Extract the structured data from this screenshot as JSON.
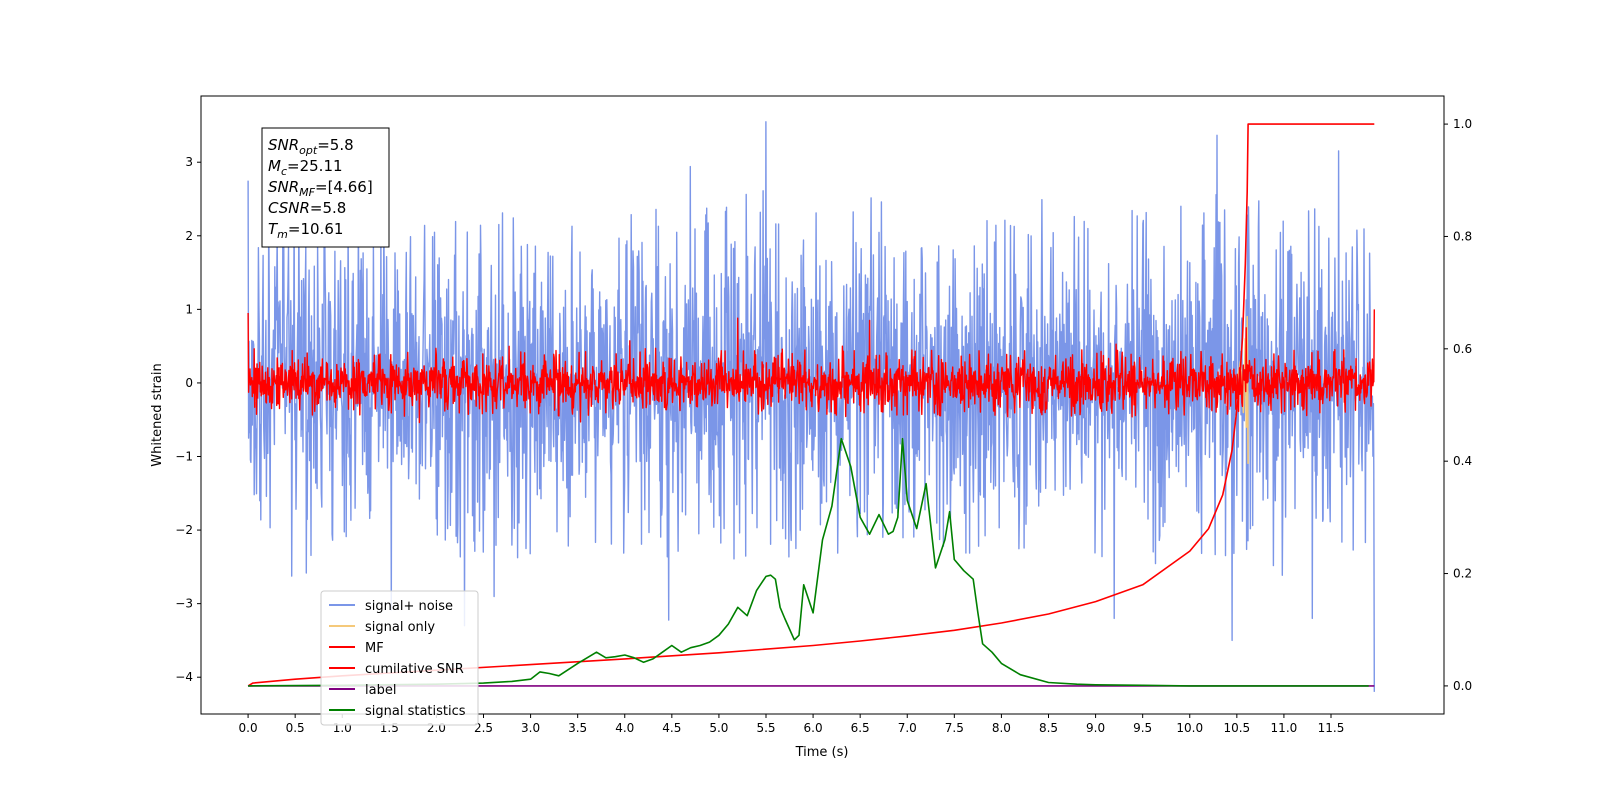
{
  "chart_data": {
    "type": "line",
    "xlabel": "Time (s)",
    "ylabel": "Whitened strain",
    "xlim": [
      -0.5,
      12.7
    ],
    "ylim": [
      -4.5,
      3.9
    ],
    "y2lim": [
      -0.05,
      1.05
    ],
    "x_ticks": [
      0.0,
      0.5,
      1.0,
      1.5,
      2.0,
      2.5,
      3.0,
      3.5,
      4.0,
      4.5,
      5.0,
      5.5,
      6.0,
      6.5,
      7.0,
      7.5,
      8.0,
      8.5,
      9.0,
      9.5,
      10.0,
      10.5,
      11.0,
      11.5
    ],
    "x_tick_labels": [
      "0.0",
      "0.5",
      "1.0",
      "1.5",
      "2.0",
      "2.5",
      "3.0",
      "3.5",
      "4.0",
      "4.5",
      "5.0",
      "5.5",
      "6.0",
      "6.5",
      "7.0",
      "7.5",
      "8.0",
      "8.5",
      "9.0",
      "9.5",
      "10.0",
      "10.5",
      "11.0",
      "11.5"
    ],
    "y_ticks": [
      -4,
      -3,
      -2,
      -1,
      0,
      1,
      2,
      3
    ],
    "y_tick_labels": [
      "−4",
      "−3",
      "−2",
      "−1",
      "0",
      "1",
      "2",
      "3"
    ],
    "y2_ticks": [
      0.0,
      0.2,
      0.4,
      0.6,
      0.8,
      1.0
    ],
    "y2_tick_labels": [
      "0.0",
      "0.2",
      "0.4",
      "0.6",
      "0.8",
      "1.0"
    ],
    "grid": false,
    "legend_position": "lower-left",
    "infobox": {
      "lines": [
        {
          "sym": "SNR",
          "sub": "opt",
          "rest": "=5.8"
        },
        {
          "sym": "M",
          "sub": "c",
          "rest": "=25.11"
        },
        {
          "sym": "SNR",
          "sub": "MF",
          "rest": "=[4.66]"
        },
        {
          "sym": "CSNR",
          "sub": "",
          "rest": "=5.8"
        },
        {
          "sym": "T",
          "sub": "m",
          "rest": "=10.61"
        }
      ]
    },
    "series": [
      {
        "name": "signal+ noise",
        "color": "#7b96e8",
        "axis": "left",
        "style": "noise",
        "x_range": [
          0,
          12
        ],
        "amplitude": 1.6,
        "peaks": [
          [
            0.0,
            2.75
          ],
          [
            5.5,
            3.55
          ],
          [
            11.96,
            -4.2
          ],
          [
            10.45,
            -3.5
          ],
          [
            2.3,
            -3.3
          ],
          [
            9.2,
            -3.2
          ],
          [
            11.3,
            -3.2
          ]
        ]
      },
      {
        "name": "signal only",
        "color": "#f5c97a",
        "axis": "left",
        "style": "chirp",
        "x": [
          10.5,
          10.54,
          10.57,
          10.59,
          10.6,
          10.61,
          10.62
        ],
        "values": [
          0.0,
          0.3,
          -0.4,
          0.6,
          -0.6,
          0.9,
          -1.1
        ]
      },
      {
        "name": "MF",
        "color": "#ff0000",
        "axis": "left",
        "style": "noise",
        "x_range": [
          0,
          12
        ],
        "amplitude": 0.3,
        "peaks": [
          [
            0.0,
            0.95
          ],
          [
            11.96,
            1.0
          ],
          [
            6.6,
            0.85
          ],
          [
            5.2,
            0.88
          ],
          [
            10.6,
            0.75
          ]
        ]
      },
      {
        "name": "cumilative SNR",
        "color": "#ff0000",
        "axis": "right",
        "style": "line",
        "x": [
          0.0,
          0.05,
          0.5,
          1.0,
          2.0,
          3.0,
          4.0,
          5.0,
          6.0,
          6.5,
          7.0,
          7.5,
          8.0,
          8.5,
          9.0,
          9.5,
          10.0,
          10.2,
          10.35,
          10.45,
          10.52,
          10.56,
          10.59,
          10.61,
          10.62,
          11.96
        ],
        "values": [
          0.0,
          0.005,
          0.012,
          0.018,
          0.028,
          0.038,
          0.048,
          0.059,
          0.072,
          0.08,
          0.089,
          0.099,
          0.112,
          0.128,
          0.15,
          0.18,
          0.24,
          0.28,
          0.34,
          0.42,
          0.52,
          0.62,
          0.75,
          0.88,
          1.0,
          1.0
        ]
      },
      {
        "name": "label",
        "color": "#800080",
        "axis": "right",
        "style": "line",
        "x": [
          0.0,
          11.96
        ],
        "values": [
          0.0,
          0.0
        ]
      },
      {
        "name": "signal statistics",
        "color": "#008000",
        "axis": "right",
        "style": "line",
        "x": [
          0.0,
          1.0,
          2.0,
          2.5,
          2.8,
          3.0,
          3.1,
          3.2,
          3.3,
          3.5,
          3.6,
          3.7,
          3.8,
          3.9,
          4.0,
          4.1,
          4.2,
          4.3,
          4.4,
          4.5,
          4.6,
          4.7,
          4.8,
          4.9,
          5.0,
          5.1,
          5.2,
          5.3,
          5.4,
          5.5,
          5.55,
          5.6,
          5.65,
          5.7,
          5.8,
          5.85,
          5.9,
          6.0,
          6.1,
          6.2,
          6.3,
          6.4,
          6.5,
          6.6,
          6.7,
          6.8,
          6.85,
          6.9,
          6.95,
          7.0,
          7.1,
          7.2,
          7.3,
          7.4,
          7.45,
          7.5,
          7.6,
          7.7,
          7.75,
          7.8,
          7.9,
          8.0,
          8.2,
          8.5,
          8.8,
          9.0,
          9.5,
          10.0,
          11.0,
          11.9
        ],
        "values": [
          0.0,
          0.001,
          0.003,
          0.005,
          0.008,
          0.012,
          0.025,
          0.022,
          0.018,
          0.04,
          0.05,
          0.06,
          0.05,
          0.052,
          0.055,
          0.05,
          0.042,
          0.048,
          0.06,
          0.072,
          0.06,
          0.068,
          0.072,
          0.078,
          0.09,
          0.11,
          0.14,
          0.125,
          0.17,
          0.195,
          0.197,
          0.19,
          0.14,
          0.12,
          0.082,
          0.09,
          0.18,
          0.13,
          0.26,
          0.32,
          0.44,
          0.39,
          0.3,
          0.27,
          0.305,
          0.27,
          0.275,
          0.3,
          0.44,
          0.33,
          0.28,
          0.36,
          0.21,
          0.26,
          0.31,
          0.225,
          0.205,
          0.19,
          0.13,
          0.075,
          0.06,
          0.04,
          0.02,
          0.006,
          0.003,
          0.002,
          0.001,
          0.0,
          0.0,
          0.0
        ]
      }
    ]
  }
}
